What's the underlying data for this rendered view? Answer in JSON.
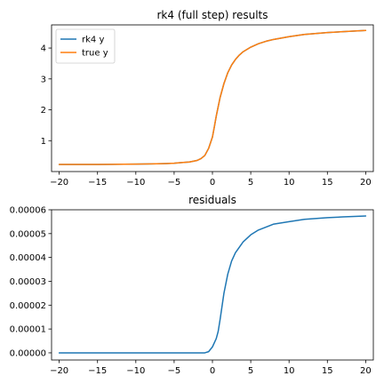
{
  "chart_data": [
    {
      "type": "line",
      "title": "rk4 (full step) results",
      "xlabel": "",
      "ylabel": "",
      "xlim": [
        -21,
        21
      ],
      "ylim": [
        0.0,
        4.75
      ],
      "xticks": [
        -20,
        -15,
        -10,
        -5,
        0,
        5,
        10,
        15,
        20
      ],
      "yticks": [
        1,
        2,
        3,
        4
      ],
      "grid": false,
      "legend_position": "top-left",
      "x": [
        -20,
        -15,
        -10,
        -8,
        -6,
        -5,
        -4,
        -3,
        -2,
        -1.5,
        -1,
        -0.5,
        0,
        0.25,
        0.5,
        0.75,
        1,
        1.5,
        2,
        2.5,
        3,
        3.5,
        4,
        5,
        6,
        7,
        8,
        10,
        12,
        15,
        17,
        20
      ],
      "series": [
        {
          "name": "rk4 y",
          "color": "#1f77b4",
          "values": [
            0.23,
            0.23,
            0.24,
            0.25,
            0.26,
            0.27,
            0.29,
            0.31,
            0.36,
            0.42,
            0.52,
            0.75,
            1.12,
            1.45,
            1.8,
            2.1,
            2.4,
            2.85,
            3.2,
            3.45,
            3.63,
            3.77,
            3.88,
            4.03,
            4.14,
            4.22,
            4.28,
            4.37,
            4.44,
            4.5,
            4.53,
            4.57
          ]
        },
        {
          "name": "true y",
          "color": "#ff7f0e",
          "values": [
            0.23,
            0.23,
            0.24,
            0.25,
            0.26,
            0.27,
            0.29,
            0.31,
            0.36,
            0.42,
            0.52,
            0.75,
            1.12,
            1.45,
            1.8,
            2.1,
            2.4,
            2.85,
            3.2,
            3.45,
            3.63,
            3.77,
            3.88,
            4.03,
            4.14,
            4.22,
            4.28,
            4.37,
            4.44,
            4.5,
            4.53,
            4.57
          ]
        }
      ]
    },
    {
      "type": "line",
      "title": "residuals",
      "xlabel": "",
      "ylabel": "",
      "xlim": [
        -21,
        21
      ],
      "ylim": [
        -3e-06,
        6e-05
      ],
      "xticks": [
        -20,
        -15,
        -10,
        -5,
        0,
        5,
        10,
        15,
        20
      ],
      "yticks": [
        "0.00000",
        "0.00001",
        "0.00002",
        "0.00003",
        "0.00004",
        "0.00005",
        "0.00006"
      ],
      "grid": false,
      "x": [
        -20,
        -10,
        -5,
        -2,
        -1,
        -0.5,
        0,
        0.5,
        0.75,
        1,
        1.5,
        2,
        2.5,
        3,
        4,
        5,
        6,
        8,
        10,
        12,
        15,
        17,
        20
      ],
      "series": [
        {
          "color": "#1f77b4",
          "values": [
            0.0,
            0.0,
            0.0,
            0.0,
            0.0,
            5e-07,
            2.5e-06,
            6e-06,
            9e-06,
            1.4e-05,
            2.5e-05,
            3.3e-05,
            3.85e-05,
            4.2e-05,
            4.65e-05,
            4.95e-05,
            5.15e-05,
            5.4e-05,
            5.5e-05,
            5.6e-05,
            5.67e-05,
            5.7e-05,
            5.74e-05
          ]
        }
      ]
    }
  ]
}
